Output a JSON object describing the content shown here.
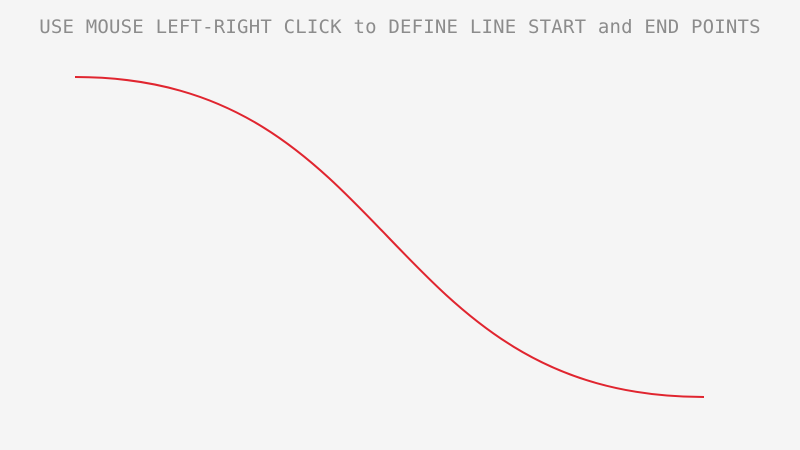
{
  "instruction_text": "USE MOUSE LEFT-RIGHT CLICK to DEFINE LINE START and END POINTS",
  "colors": {
    "background": "#f5f5f5",
    "text": "#8c8c8c",
    "curve": "#e0252f"
  }
}
